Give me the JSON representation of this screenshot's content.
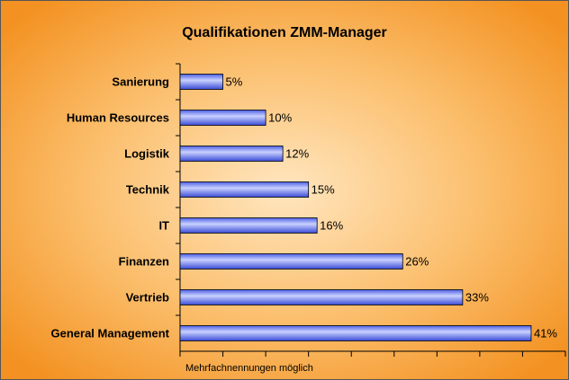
{
  "chart_data": {
    "type": "hbar",
    "title": "Qualifikationen ZMM-Manager",
    "categories": [
      "Sanierung",
      "Human Resources",
      "Logistik",
      "Technik",
      "IT",
      "Finanzen",
      "Vertrieb",
      "General Management"
    ],
    "values": [
      5,
      10,
      12,
      15,
      16,
      26,
      33,
      41
    ],
    "value_labels": [
      "5%",
      "10%",
      "12%",
      "15%",
      "16%",
      "26%",
      "33%",
      "41%"
    ],
    "color": "#5a6cf0",
    "xlim": [
      0,
      45
    ],
    "xticks": [
      0,
      5,
      10,
      15,
      20,
      25,
      30,
      35,
      40,
      45
    ],
    "note": "Mehrfachnennungen möglich"
  }
}
